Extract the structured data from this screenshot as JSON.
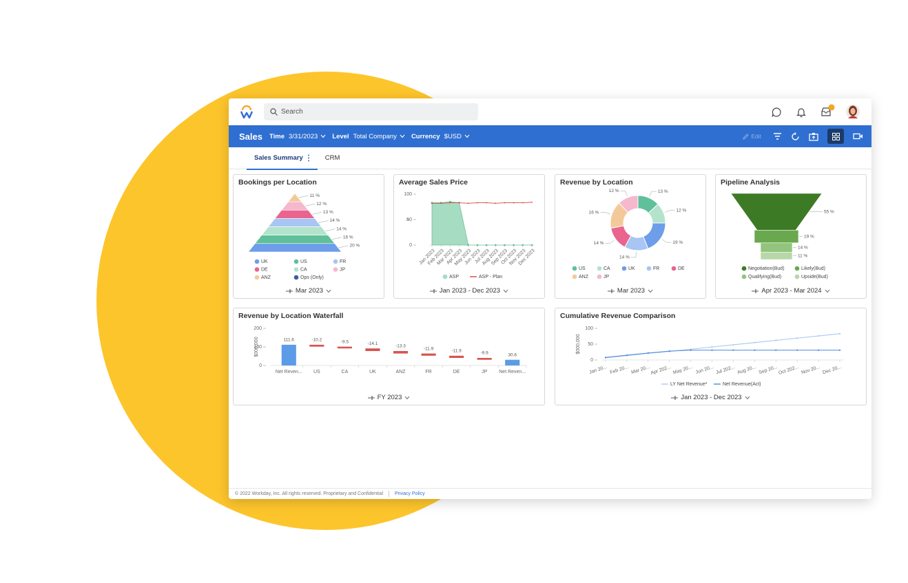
{
  "header": {
    "search_placeholder": "Search"
  },
  "toolbar": {
    "title": "Sales",
    "edit": "Edit",
    "filters": [
      {
        "label": "Time",
        "value": "3/31/2023"
      },
      {
        "label": "Level",
        "value": "Total Company"
      },
      {
        "label": "Currency",
        "value": "$USD"
      }
    ]
  },
  "tabs": [
    {
      "label": "Sales Summary",
      "active": true
    },
    {
      "label": "CRM",
      "active": false
    }
  ],
  "widgets": [
    {
      "title": "Bookings per Location",
      "period": "Mar 2023",
      "chart": {
        "type": "pyramid",
        "segments": [
          {
            "color": "#f4c99a",
            "value": 11,
            "value_label": "11 %"
          },
          {
            "color": "#f5b8cd",
            "value": 12,
            "value_label": "12 %"
          },
          {
            "color": "#e9648f",
            "value": 13,
            "value_label": "13 %"
          },
          {
            "color": "#a8c5f3",
            "value": 14,
            "value_label": "14 %"
          },
          {
            "color": "#b3e3cb",
            "value": 14,
            "value_label": "14 %"
          },
          {
            "color": "#5fc09b",
            "value": 16,
            "value_label": "16 %"
          },
          {
            "color": "#6e9de9",
            "value": 20,
            "value_label": "20 %"
          }
        ],
        "legend": [
          {
            "name": "UK",
            "color": "#6e9de9"
          },
          {
            "name": "US",
            "color": "#5fc09b"
          },
          {
            "name": "FR",
            "color": "#a8c5f3"
          },
          {
            "name": "DE",
            "color": "#e9648f"
          },
          {
            "name": "CA",
            "color": "#b3e3cb"
          },
          {
            "name": "JP",
            "color": "#f5b8cd"
          },
          {
            "name": "ANZ",
            "color": "#f4c99a"
          },
          {
            "name": "Ops (Only)",
            "color": "#3c5f9c"
          }
        ]
      }
    },
    {
      "title": "Average Sales Price",
      "period": "Jan 2023 - Dec 2023",
      "chart": {
        "type": "combo",
        "axis_break": "≈",
        "categories": [
          "Jan 2023",
          "Feb 2023",
          "Mar 2023",
          "Apr 2023",
          "May 2023",
          "Jun 2023",
          "Jul 2023",
          "Aug 2023",
          "Sep 2023",
          "Oct 2023",
          "Nov 2023",
          "Dec 2023"
        ],
        "ylim": [
          0,
          100
        ],
        "yticks": [
          0,
          50,
          100
        ],
        "series": [
          {
            "name": "ASP",
            "kind": "area",
            "color": "#a6dcc2",
            "values": [
              83,
              83,
              85,
              83,
              0,
              0,
              0,
              0,
              0,
              0,
              0,
              0
            ]
          },
          {
            "name": "ASP - Plan",
            "kind": "line",
            "color": "#d64541",
            "values": [
              82,
              82,
              83,
              83,
              82,
              83,
              83,
              82,
              83,
              83,
              83,
              84
            ]
          }
        ]
      }
    },
    {
      "title": "Revenue by Location",
      "period": "Mar 2023",
      "chart": {
        "type": "donut",
        "segments": [
          {
            "color": "#5fc09b",
            "value": 13,
            "value_label": "13 %"
          },
          {
            "color": "#b3e3cb",
            "value": 12,
            "value_label": "12 %"
          },
          {
            "color": "#6e9de9",
            "value": 19,
            "value_label": "19 %"
          },
          {
            "color": "#a8c5f3",
            "value": 14,
            "value_label": "14 %"
          },
          {
            "color": "#e9648f",
            "value": 14,
            "value_label": "14 %"
          },
          {
            "color": "#f4c99a",
            "value": 16,
            "value_label": "16 %"
          },
          {
            "color": "#f5b8cd",
            "value": 12,
            "value_label": "12 %"
          }
        ],
        "legend": [
          {
            "name": "US",
            "color": "#5fc09b"
          },
          {
            "name": "CA",
            "color": "#b3e3cb"
          },
          {
            "name": "UK",
            "color": "#6e9de9"
          },
          {
            "name": "FR",
            "color": "#a8c5f3"
          },
          {
            "name": "DE",
            "color": "#e9648f"
          },
          {
            "name": "ANZ",
            "color": "#f4c99a"
          },
          {
            "name": "JP",
            "color": "#f5b8cd"
          }
        ]
      }
    },
    {
      "title": "Pipeline Analysis",
      "period": "Apr 2023 - Mar 2024",
      "chart": {
        "type": "funnel",
        "segments": [
          {
            "color": "#3d7a25",
            "value": 55,
            "value_label": "55 %"
          },
          {
            "color": "#6aa84f",
            "value": 19,
            "value_label": "19 %"
          },
          {
            "color": "#93c47d",
            "value": 14,
            "value_label": "14 %"
          },
          {
            "color": "#b7d7a8",
            "value": 11,
            "value_label": "11 %"
          }
        ],
        "legend": [
          {
            "name": "Negotiation(Bud)",
            "color": "#3d7a25"
          },
          {
            "name": "Likely(Bud)",
            "color": "#6aa84f"
          },
          {
            "name": "Qualifying(Bud)",
            "color": "#93c47d"
          },
          {
            "name": "Upside(Bud)",
            "color": "#b7d7a8"
          }
        ]
      }
    },
    {
      "title": "Revenue by Location Waterfall",
      "period": "FY 2023",
      "chart": {
        "type": "waterfall",
        "ylabel": "$000,000",
        "categories": [
          "Net Reven...",
          "US",
          "CA",
          "UK",
          "ANZ",
          "FR",
          "DE",
          "JP",
          "Net Reven..."
        ],
        "values": [
          111.6,
          -10.2,
          -9.5,
          -14.1,
          -13.3,
          -11.9,
          -11.9,
          -9.9,
          30.6
        ],
        "kinds": [
          "total",
          "change",
          "change",
          "change",
          "change",
          "change",
          "change",
          "change",
          "total"
        ],
        "total_color": "#5b9be8",
        "change_color": "#d9534f",
        "ylim": [
          0,
          200
        ],
        "yticks": [
          0,
          100,
          200
        ]
      }
    },
    {
      "title": "Cumulative Revenue Comparison",
      "period": "Jan 2023 - Dec 2023",
      "chart": {
        "type": "line",
        "ylabel": "$000,000",
        "categories": [
          "Jan 20...",
          "Feb 20...",
          "Mar 20...",
          "Apr 202...",
          "May 20...",
          "Jun 20...",
          "Jul 202...",
          "Aug 20...",
          "Sep 20...",
          "Oct 202...",
          "Nov 20...",
          "Dec 20..."
        ],
        "ylim": [
          0,
          100
        ],
        "yticks": [
          0,
          50,
          100
        ],
        "series": [
          {
            "name": "LY Net Revenue*",
            "color": "#a9c8f2",
            "values": [
              7,
              14,
              21,
              27,
              34,
              41,
              48,
              55,
              62,
              69,
              76,
              83
            ]
          },
          {
            "name": "Net Revenue(Act)",
            "color": "#4f86dc",
            "values": [
              8,
              15,
              22,
              28,
              31,
              31,
              31,
              31,
              31,
              31,
              31,
              31
            ]
          }
        ]
      }
    }
  ],
  "footer": {
    "copyright": "© 2022 Workday, Inc. All rights reserved. Proprietary and Confidential",
    "link": "Privacy Policy"
  }
}
